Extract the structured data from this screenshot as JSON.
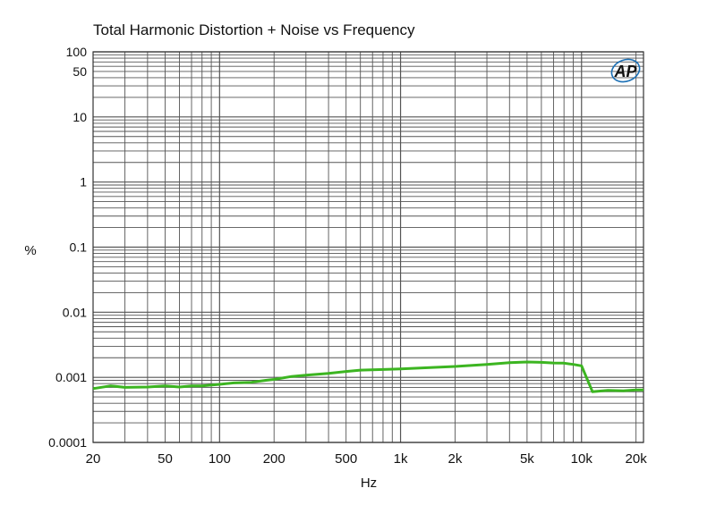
{
  "chart_data": {
    "type": "line",
    "title": "Total Harmonic Distortion + Noise vs Frequency",
    "xlabel": "Hz",
    "ylabel": "%",
    "x_scale": "log",
    "y_scale": "log",
    "xlim": [
      20,
      22000
    ],
    "ylim": [
      0.0001,
      100
    ],
    "grid": true,
    "logo_text": "AP",
    "colors": {
      "series": "#3cb521",
      "grid": "#555555",
      "logo": "#1a6fb5"
    },
    "x_ticks": [
      {
        "v": 20,
        "label": "20"
      },
      {
        "v": 50,
        "label": "50"
      },
      {
        "v": 100,
        "label": "100"
      },
      {
        "v": 200,
        "label": "200"
      },
      {
        "v": 500,
        "label": "500"
      },
      {
        "v": 1000,
        "label": "1k"
      },
      {
        "v": 2000,
        "label": "2k"
      },
      {
        "v": 5000,
        "label": "5k"
      },
      {
        "v": 10000,
        "label": "10k"
      },
      {
        "v": 20000,
        "label": "20k"
      }
    ],
    "y_ticks": [
      {
        "v": 100,
        "label": "100"
      },
      {
        "v": 50,
        "label": "50"
      },
      {
        "v": 10,
        "label": "10"
      },
      {
        "v": 1,
        "label": "1"
      },
      {
        "v": 0.1,
        "label": "0.1"
      },
      {
        "v": 0.01,
        "label": "0.01"
      },
      {
        "v": 0.001,
        "label": "0.001"
      },
      {
        "v": 0.0001,
        "label": "0.0001"
      }
    ],
    "series": [
      {
        "x": [
          20,
          25,
          30,
          40,
          50,
          60,
          70,
          80,
          100,
          120,
          150,
          180,
          200,
          250,
          300,
          400,
          500,
          600,
          800,
          1000,
          1500,
          2000,
          3000,
          4000,
          5000,
          6000,
          7000,
          8000,
          9000,
          10000,
          11500,
          14000,
          17000,
          20000,
          22000
        ],
        "y": [
          0.00067,
          0.00074,
          0.0007,
          0.00071,
          0.00074,
          0.00071,
          0.00074,
          0.00074,
          0.00078,
          0.00082,
          0.00084,
          0.0009,
          0.00093,
          0.00103,
          0.00108,
          0.00115,
          0.00123,
          0.00129,
          0.00132,
          0.00135,
          0.00142,
          0.00147,
          0.00158,
          0.00168,
          0.00172,
          0.0017,
          0.00166,
          0.00165,
          0.00158,
          0.0015,
          0.0006,
          0.00063,
          0.00062,
          0.00064,
          0.00064
        ]
      }
    ]
  }
}
